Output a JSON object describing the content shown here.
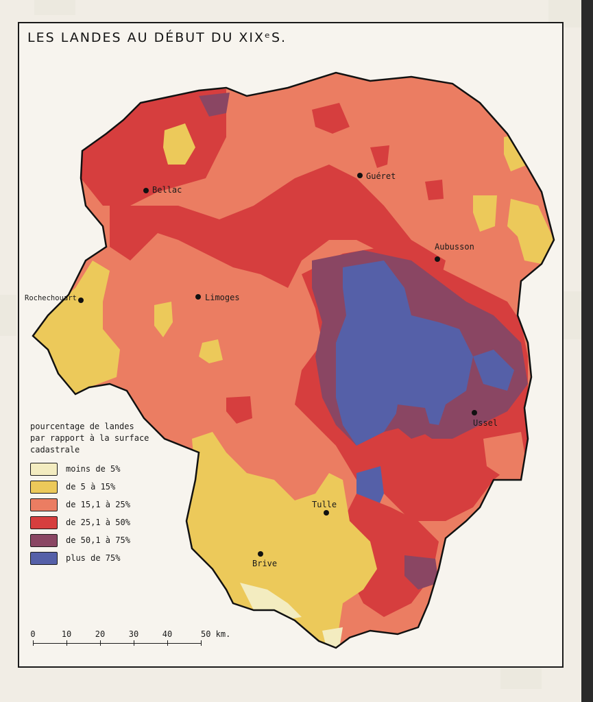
{
  "title": "LES LANDES AU DÉBUT DU XIXᵉS.",
  "legend": {
    "title": "pourcentage de landes\npar rapport à la surface\ncadastrale",
    "items": [
      {
        "label": "moins de 5%",
        "color": "#f3ecc0"
      },
      {
        "label": "de 5 à 15%",
        "color": "#ecc95a"
      },
      {
        "label": "de 15,1 à 25%",
        "color": "#eb7d62"
      },
      {
        "label": "de 25,1 à 50%",
        "color": "#d63e3e"
      },
      {
        "label": "de 50,1 à 75%",
        "color": "#8a4663"
      },
      {
        "label": "plus de 75%",
        "color": "#5560a8"
      }
    ]
  },
  "cities": [
    {
      "name": "Bellac"
    },
    {
      "name": "Guéret"
    },
    {
      "name": "Aubusson"
    },
    {
      "name": "Rochechouart"
    },
    {
      "name": "Limoges"
    },
    {
      "name": "Ussel"
    },
    {
      "name": "Tulle"
    },
    {
      "name": "Brive"
    }
  ],
  "scale": {
    "ticks": [
      "0",
      "10",
      "20",
      "30",
      "40",
      "50 km."
    ]
  }
}
